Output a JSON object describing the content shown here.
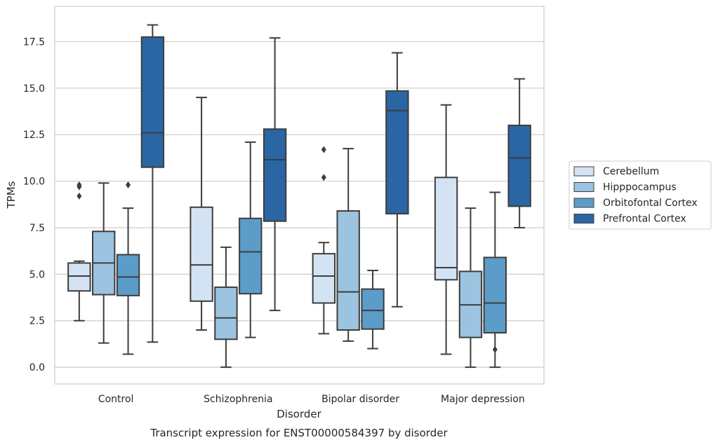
{
  "chart_data": {
    "type": "boxplot",
    "caption": "Transcript expression for ENST00000584397 by disorder",
    "xlabel": "Disorder",
    "ylabel": "TPMs",
    "ylim": [
      -0.9,
      19.4
    ],
    "yticks": [
      0.0,
      2.5,
      5.0,
      7.5,
      10.0,
      12.5,
      15.0,
      17.5
    ],
    "ytick_labels": [
      "0.0",
      "2.5",
      "5.0",
      "7.5",
      "10.0",
      "12.5",
      "15.0",
      "17.5"
    ],
    "grid": "horizontal",
    "legend_position": "right",
    "categories": [
      "Control",
      "Schizophrenia",
      "Bipolar disorder",
      "Major depression"
    ],
    "series": [
      {
        "name": "Cerebellum",
        "color": "#d4e3f3",
        "boxes": [
          {
            "whisker_low": 2.5,
            "q1": 4.1,
            "median": 4.9,
            "q3": 5.6,
            "whisker_high": 5.7,
            "outliers": [
              9.2,
              9.7,
              9.8
            ]
          },
          {
            "whisker_low": 2.0,
            "q1": 3.55,
            "median": 5.5,
            "q3": 8.6,
            "whisker_high": 14.5,
            "outliers": []
          },
          {
            "whisker_low": 1.8,
            "q1": 3.45,
            "median": 4.9,
            "q3": 6.1,
            "whisker_high": 6.7,
            "outliers": [
              10.2,
              11.7
            ]
          },
          {
            "whisker_low": 0.7,
            "q1": 4.7,
            "median": 5.35,
            "q3": 10.2,
            "whisker_high": 14.1,
            "outliers": []
          }
        ]
      },
      {
        "name": "Hipppocampus",
        "color": "#9cc3df",
        "boxes": [
          {
            "whisker_low": 1.3,
            "q1": 3.9,
            "median": 5.6,
            "q3": 7.3,
            "whisker_high": 9.9,
            "outliers": []
          },
          {
            "whisker_low": 0.0,
            "q1": 1.5,
            "median": 2.65,
            "q3": 4.3,
            "whisker_high": 6.45,
            "outliers": []
          },
          {
            "whisker_low": 1.4,
            "q1": 2.0,
            "median": 4.05,
            "q3": 8.4,
            "whisker_high": 11.75,
            "outliers": []
          },
          {
            "whisker_low": 0.0,
            "q1": 1.6,
            "median": 3.35,
            "q3": 5.15,
            "whisker_high": 8.55,
            "outliers": []
          }
        ]
      },
      {
        "name": "Orbitofontal Cortex",
        "color": "#5c9cc8",
        "boxes": [
          {
            "whisker_low": 0.7,
            "q1": 3.85,
            "median": 4.85,
            "q3": 6.05,
            "whisker_high": 8.55,
            "outliers": [
              9.8
            ]
          },
          {
            "whisker_low": 1.6,
            "q1": 3.95,
            "median": 6.2,
            "q3": 8.0,
            "whisker_high": 12.1,
            "outliers": []
          },
          {
            "whisker_low": 1.0,
            "q1": 2.05,
            "median": 3.05,
            "q3": 4.2,
            "whisker_high": 5.2,
            "outliers": []
          },
          {
            "whisker_low": 0.0,
            "q1": 1.85,
            "median": 3.45,
            "q3": 5.9,
            "whisker_high": 9.4,
            "outliers": [
              0.95
            ]
          }
        ]
      },
      {
        "name": "Prefrontal Cortex",
        "color": "#2a66a4",
        "boxes": [
          {
            "whisker_low": 1.35,
            "q1": 10.75,
            "median": 12.6,
            "q3": 17.75,
            "whisker_high": 18.4,
            "outliers": []
          },
          {
            "whisker_low": 3.05,
            "q1": 7.85,
            "median": 11.15,
            "q3": 12.8,
            "whisker_high": 17.7,
            "outliers": []
          },
          {
            "whisker_low": 3.25,
            "q1": 8.25,
            "median": 13.8,
            "q3": 14.85,
            "whisker_high": 16.9,
            "outliers": []
          },
          {
            "whisker_low": 7.5,
            "q1": 8.65,
            "median": 11.25,
            "q3": 13.0,
            "whisker_high": 15.5,
            "outliers": []
          }
        ]
      }
    ],
    "colors": {
      "grid": "#cccccc",
      "axes_frame": "#cccccc",
      "box_edge": "#3d3d3d",
      "text": "#262626"
    }
  }
}
